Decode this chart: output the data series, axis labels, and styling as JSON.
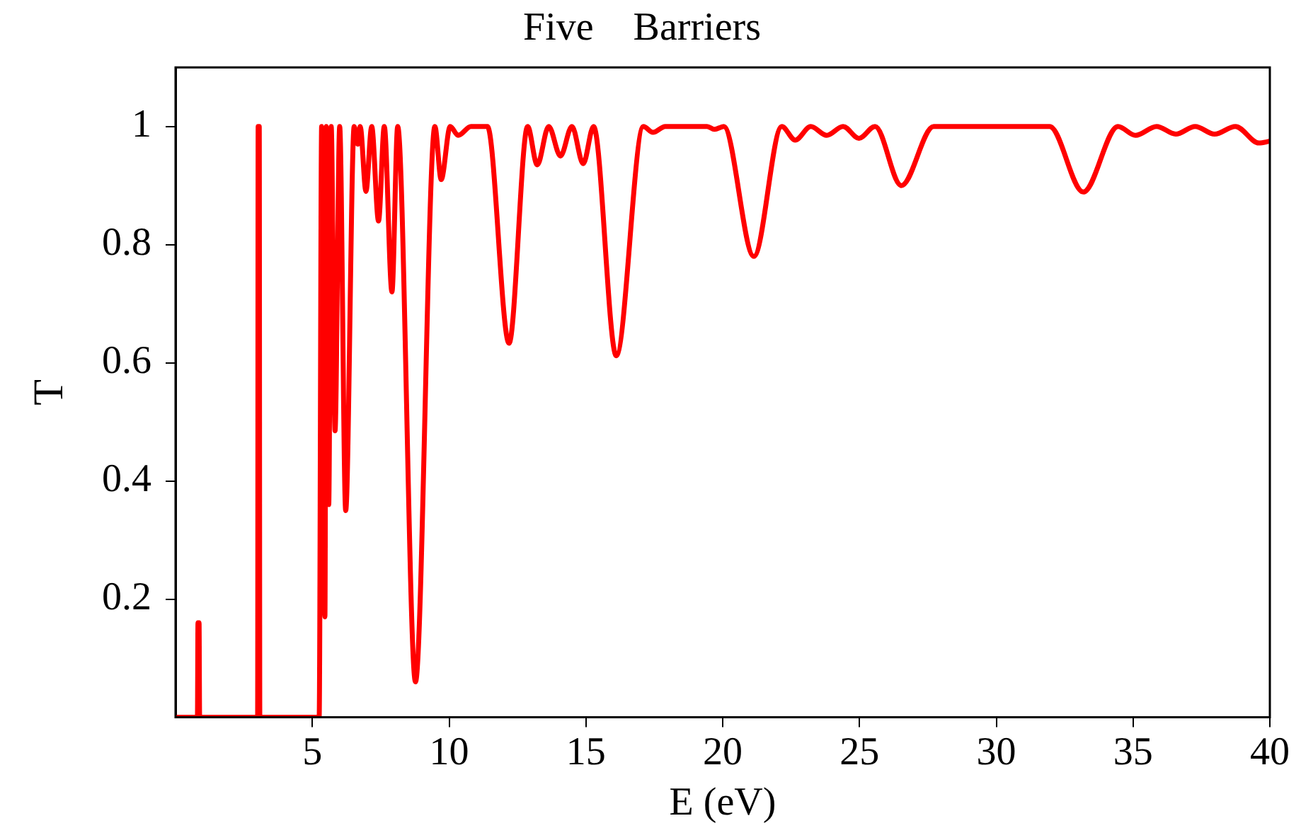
{
  "chart_data": {
    "type": "line",
    "title": "Five    Barriers",
    "xlabel": "E (eV)",
    "ylabel": "T",
    "xlim": [
      0,
      40
    ],
    "xticks": [
      5,
      10,
      15,
      20,
      25,
      30,
      35,
      40
    ],
    "ylim": [
      0,
      1.1
    ],
    "yticks": [
      0.2,
      0.4,
      0.6,
      0.8,
      1
    ],
    "grid": false,
    "legend": false,
    "marker": "none",
    "line_style": "solid",
    "series": [
      {
        "color": "#ff0000",
        "x": [
          0,
          0.8,
          0.82,
          0.86,
          0.88,
          3.0,
          3.02,
          3.06,
          3.08,
          5.25,
          5.34,
          5.46,
          5.51,
          5.6,
          5.69,
          5.83,
          6.0,
          6.22,
          6.53,
          6.66,
          6.75,
          6.96,
          7.17,
          7.42,
          7.63,
          7.91,
          8.12,
          8.77,
          9.48,
          9.71,
          10.04,
          10.33,
          10.8,
          11.4,
          12.19,
          12.87,
          13.22,
          13.64,
          14.07,
          14.49,
          14.9,
          15.28,
          16.11,
          17.1,
          17.45,
          17.9,
          19.43,
          19.7,
          20.04,
          21.14,
          22.16,
          22.65,
          23.22,
          23.8,
          24.4,
          24.98,
          25.57,
          26.53,
          27.71,
          31.95,
          33.18,
          34.45,
          35.09,
          35.86,
          36.56,
          37.27,
          37.98,
          38.74,
          39.6,
          40
        ],
        "values": [
          0,
          0,
          0.16,
          0.16,
          0,
          0,
          1,
          1,
          0,
          0,
          1,
          0.17,
          1,
          0.36,
          1,
          0.485,
          1,
          0.35,
          1,
          0.97,
          1,
          0.89,
          1,
          0.84,
          1,
          0.72,
          1,
          0.06,
          1,
          0.91,
          1,
          0.985,
          1,
          1,
          0.633,
          1,
          0.935,
          1,
          0.95,
          1,
          0.937,
          1,
          0.612,
          1,
          0.99,
          1,
          1,
          0.995,
          1,
          0.78,
          1,
          0.977,
          1,
          0.985,
          1,
          0.98,
          1,
          0.9,
          1,
          1,
          0.889,
          1,
          0.985,
          1,
          0.987,
          1,
          0.987,
          1,
          0.972,
          0.975
        ]
      }
    ]
  }
}
